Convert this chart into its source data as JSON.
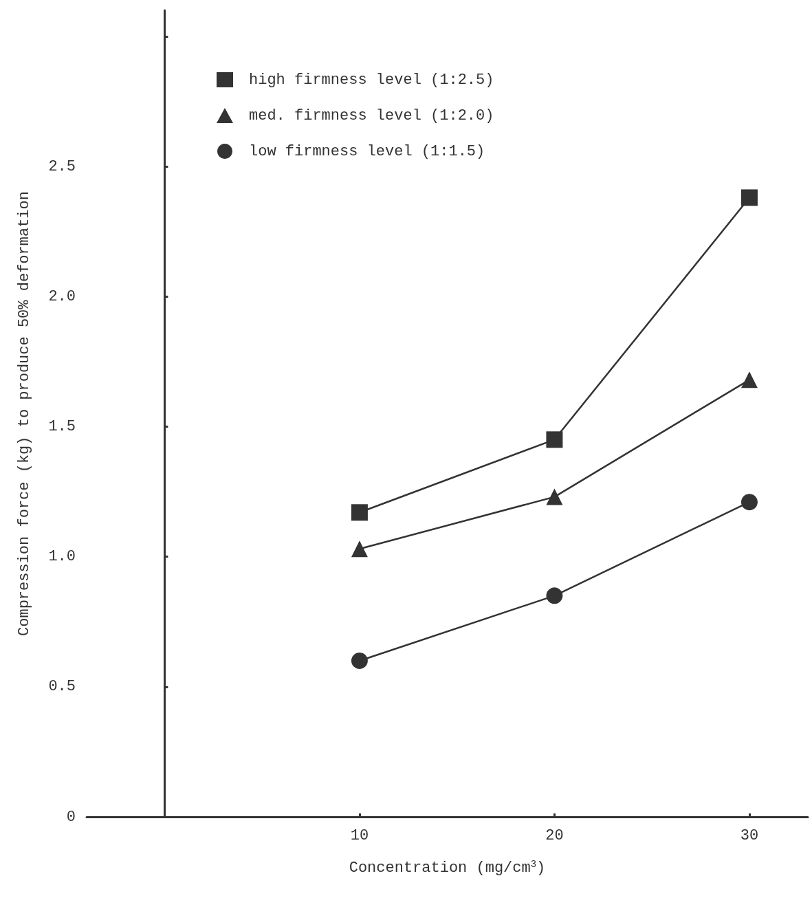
{
  "chart_data": {
    "type": "line",
    "xlabel": "Concentration (mg/cm$^{3}$)",
    "ylabel": "Compression force (kg) to produce 50% deformation",
    "xlim": [
      -4,
      33
    ],
    "xticks": [
      10,
      20,
      30
    ],
    "ylim": [
      0,
      3.1
    ],
    "yticks": [
      0,
      0.5,
      {
        "value": 1,
        "label": "1.0"
      },
      1.5,
      {
        "value": 2,
        "label": "2.0"
      },
      2.5,
      {
        "value": 3,
        "label": null
      }
    ],
    "x": [
      10,
      20,
      30
    ],
    "series": [
      {
        "name": "high firmness level (1:2.5)",
        "color": "#333333",
        "marker": "square",
        "values": [
          1.17,
          1.45,
          2.38
        ]
      },
      {
        "name": "med. firmness level (1:2.0)",
        "color": "#333333",
        "marker": "triangle",
        "values": [
          1.03,
          1.23,
          1.68
        ]
      },
      {
        "name": "low firmness level (1:1.5)",
        "color": "#333333",
        "marker": "circle",
        "values": [
          0.6,
          0.85,
          1.21
        ]
      }
    ],
    "grid": false,
    "legend": "top",
    "line_style": "solid"
  }
}
